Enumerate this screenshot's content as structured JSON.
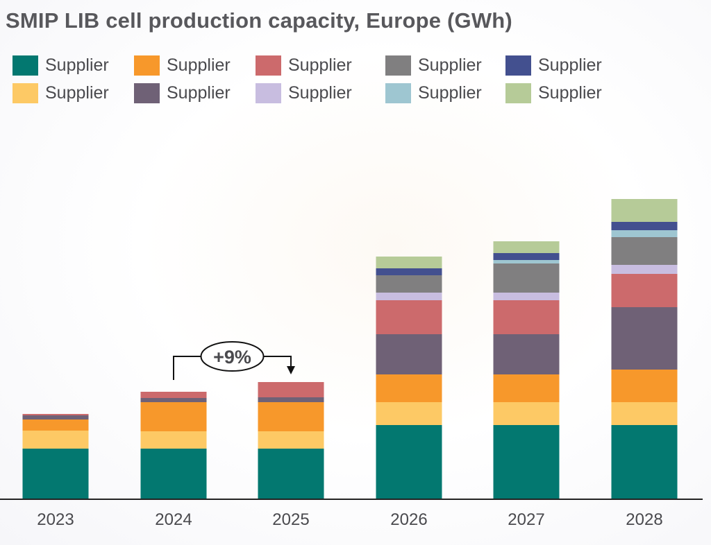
{
  "chart_data": {
    "type": "bar",
    "stacked": true,
    "title": "SMIP LIB cell production capacity, Europe (GWh)",
    "xlabel": "",
    "ylabel": "",
    "unit": "GWh (relative, no axis shown)",
    "categories": [
      "2023",
      "2024",
      "2025",
      "2026",
      "2027",
      "2028"
    ],
    "ylim": [
      0,
      440
    ],
    "grid": false,
    "legend_position": "top",
    "series": [
      {
        "name": "Supplier",
        "color": "#037870",
        "values": [
          73,
          73,
          73,
          107,
          107,
          107
        ]
      },
      {
        "name": "Supplier",
        "color": "#fdc965",
        "values": [
          26,
          25,
          25,
          33,
          33,
          33
        ]
      },
      {
        "name": "Supplier",
        "color": "#f7982b",
        "values": [
          16,
          42,
          42,
          40,
          40,
          47
        ]
      },
      {
        "name": "Supplier",
        "color": "#6f6176",
        "values": [
          6,
          6,
          7,
          58,
          58,
          90
        ]
      },
      {
        "name": "Supplier",
        "color": "#cc6a6c",
        "values": [
          2,
          9,
          22,
          49,
          49,
          48
        ]
      },
      {
        "name": "Supplier",
        "color": "#c8bde0",
        "values": [
          0,
          0,
          0,
          11,
          11,
          13
        ]
      },
      {
        "name": "Supplier",
        "color": "#807f80",
        "values": [
          0,
          0,
          0,
          25,
          42,
          40
        ]
      },
      {
        "name": "Supplier",
        "color": "#9ec6d1",
        "values": [
          0,
          0,
          0,
          0,
          5,
          10
        ]
      },
      {
        "name": "Supplier",
        "color": "#43508f",
        "values": [
          0,
          0,
          0,
          10,
          10,
          12
        ]
      },
      {
        "name": "Supplier",
        "color": "#b6cb98",
        "values": [
          0,
          0,
          0,
          17,
          17,
          33
        ]
      }
    ],
    "annotations": [
      {
        "text": "+9%",
        "from": "2024",
        "to": "2025",
        "shape": "ellipse-with-bracket-arrow"
      }
    ]
  },
  "legend": {
    "rows": [
      [
        0,
        2,
        4,
        6,
        8
      ],
      [
        1,
        3,
        5,
        7,
        9
      ]
    ]
  }
}
